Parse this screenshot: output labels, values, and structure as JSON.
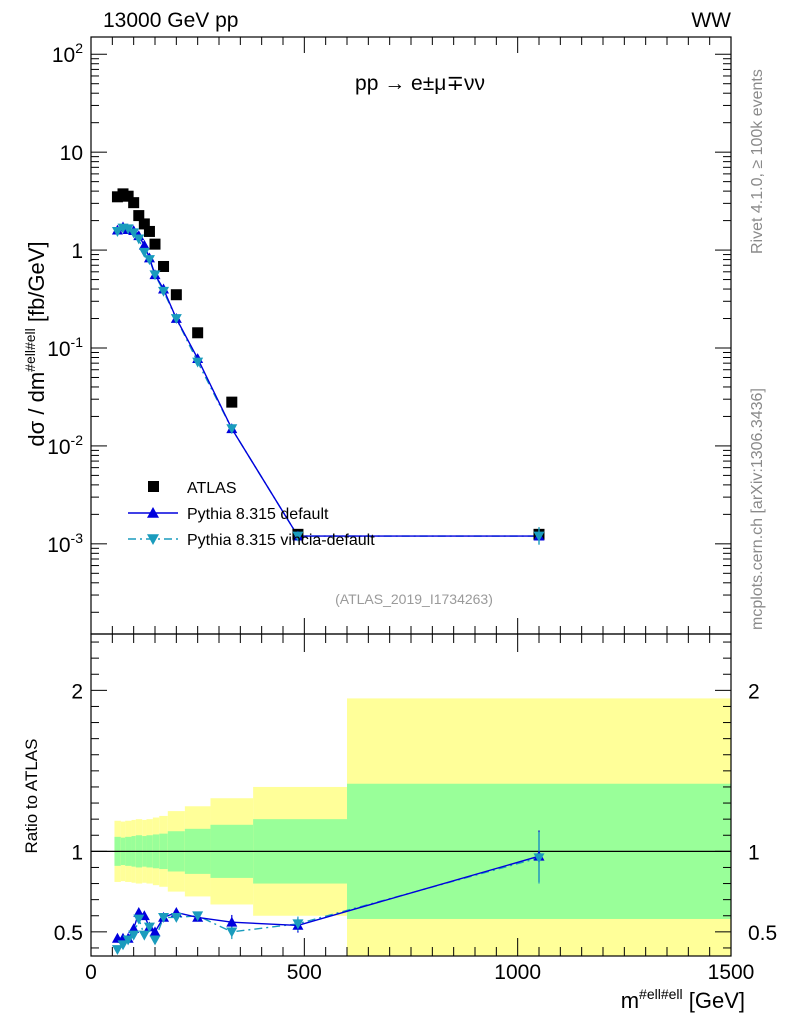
{
  "header": {
    "left_title": "13000 GeV pp",
    "right_title": "WW",
    "process_label": "pp → e±μ∓νν",
    "analysis_id": "(ATLAS_2019_I1734263)",
    "side_rivet": "Rivet 4.1.0, ≥ 100k events",
    "side_mcplots": "mcplots.cern.ch [arXiv:1306.3436]"
  },
  "chart_data": [
    {
      "type": "scatter",
      "panel": "main",
      "ylabel": "dσ / dm^{#ell#ell} [fb/GeV]",
      "yscale": "log",
      "xlim": [
        0,
        1500
      ],
      "ylim": [
        0.00012,
        150
      ],
      "ytick_labels": [
        "10^{-3}",
        "10^{-2}",
        "10^{-1}",
        "1",
        "10",
        "10^{2}"
      ],
      "series": [
        {
          "name": "ATLAS",
          "x": [
            62,
            75,
            87,
            100,
            112,
            125,
            137,
            150,
            170,
            200,
            250,
            330,
            485,
            1050
          ],
          "y": [
            3.5,
            3.75,
            3.55,
            3.05,
            2.25,
            1.85,
            1.55,
            1.15,
            0.68,
            0.35,
            0.143,
            0.028,
            0.00125,
            0.00125
          ]
        },
        {
          "name": "Pythia 8.315 default",
          "x": [
            62,
            75,
            87,
            100,
            112,
            125,
            137,
            150,
            170,
            200,
            250,
            330,
            485,
            1050
          ],
          "y": [
            1.6,
            1.72,
            1.62,
            1.58,
            1.4,
            1.12,
            0.83,
            0.56,
            0.4,
            0.2,
            0.078,
            0.015,
            0.0012,
            0.0012
          ]
        },
        {
          "name": "Pythia 8.315 vincia-default",
          "x": [
            62,
            75,
            87,
            100,
            112,
            125,
            137,
            150,
            170,
            200,
            250,
            330,
            485,
            1050
          ],
          "y": [
            1.55,
            1.68,
            1.65,
            1.5,
            1.3,
            0.95,
            0.8,
            0.56,
            0.38,
            0.2,
            0.072,
            0.015,
            0.0012,
            0.0012
          ]
        }
      ],
      "legend": [
        "ATLAS",
        "Pythia 8.315 default",
        "Pythia 8.315 vincia-default"
      ],
      "legend_position": "bottom-left"
    },
    {
      "type": "scatter",
      "panel": "ratio",
      "ylabel": "Ratio to ATLAS",
      "xlabel": "m^{#ell#ell} [GeV]",
      "xlim": [
        0,
        1500
      ],
      "ylim": [
        0.35,
        2.35
      ],
      "xtick_labels": [
        "0",
        "500",
        "1000",
        "1500"
      ],
      "ytick_labels": [
        "0.5",
        "1",
        "2"
      ],
      "bins": [
        55,
        70,
        80,
        95,
        105,
        120,
        130,
        145,
        160,
        180,
        220,
        280,
        380,
        600,
        1500
      ],
      "band_outer": [
        0.19,
        0.185,
        0.19,
        0.195,
        0.2,
        0.195,
        0.2,
        0.21,
        0.22,
        0.25,
        0.28,
        0.33,
        0.4,
        0.95
      ],
      "band_inner": [
        0.09,
        0.085,
        0.09,
        0.095,
        0.1,
        0.095,
        0.1,
        0.105,
        0.11,
        0.125,
        0.14,
        0.165,
        0.2,
        0.42
      ],
      "series": [
        {
          "name": "Pythia 8.315 default",
          "x": [
            62,
            75,
            87,
            100,
            112,
            125,
            137,
            150,
            170,
            200,
            250,
            330,
            485,
            1050
          ],
          "y": [
            0.46,
            0.46,
            0.46,
            0.52,
            0.62,
            0.6,
            0.53,
            0.5,
            0.59,
            0.62,
            0.59,
            0.56,
            0.54,
            0.97
          ]
        },
        {
          "name": "Pythia 8.315 vincia-default",
          "x": [
            62,
            75,
            87,
            100,
            112,
            125,
            137,
            150,
            170,
            200,
            250,
            330,
            485,
            1050
          ],
          "y": [
            0.39,
            0.42,
            0.45,
            0.48,
            0.58,
            0.48,
            0.53,
            0.45,
            0.59,
            0.59,
            0.6,
            0.5,
            0.55,
            0.96
          ]
        }
      ],
      "reference_line": 1
    }
  ],
  "colors": {
    "data": "#000000",
    "default": "#0000dd",
    "vincia": "#1a9cbd",
    "band_outer": "#ffff99",
    "band_inner": "#99ff99"
  }
}
